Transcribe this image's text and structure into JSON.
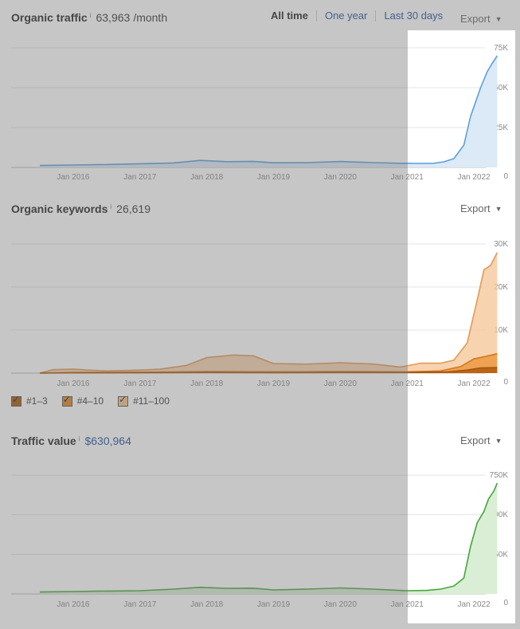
{
  "traffic": {
    "title": "Organic traffic",
    "info": "i",
    "value": "63,963",
    "unit": "/month",
    "range": [
      "All time",
      "One year",
      "Last 30 days"
    ],
    "export": "Export",
    "color": "#5aa0dc"
  },
  "keywords": {
    "title": "Organic keywords",
    "info": "i",
    "value": "26,619",
    "export": "Export",
    "legend": [
      {
        "label": "#1–3",
        "color": "#a95409"
      },
      {
        "label": "#4–10",
        "color": "#e0831c"
      },
      {
        "label": "#11–100",
        "color": "#f5c18b"
      }
    ]
  },
  "value": {
    "title": "Traffic value",
    "info": "i",
    "value": "$630,964",
    "export": "Export",
    "color": "#45a63a"
  },
  "arrow_icon": "caret-down-icon",
  "chart_data": [
    {
      "type": "area",
      "x_labels": [
        "Jan 2016",
        "Jan 2017",
        "Jan 2018",
        "Jan 2019",
        "Jan 2020",
        "Jan 2021",
        "Jan 2022"
      ],
      "y_ticks": [
        "0",
        "25K",
        "50K",
        "75K"
      ],
      "ylim": [
        0,
        75000
      ],
      "xlim": [
        2015.5,
        2022.5
      ],
      "series": [
        {
          "values": [
            [
              2015.5,
              1200
            ],
            [
              2016.0,
              1500
            ],
            [
              2016.5,
              1800
            ],
            [
              2017.0,
              2300
            ],
            [
              2017.5,
              2800
            ],
            [
              2017.9,
              4400
            ],
            [
              2018.3,
              3600
            ],
            [
              2018.7,
              3800
            ],
            [
              2019.0,
              2900
            ],
            [
              2019.5,
              3000
            ],
            [
              2020.0,
              3700
            ],
            [
              2020.5,
              3000
            ],
            [
              2020.9,
              2600
            ],
            [
              2021.2,
              2500
            ],
            [
              2021.4,
              2600
            ],
            [
              2021.55,
              3500
            ],
            [
              2021.7,
              5500
            ],
            [
              2021.85,
              14000
            ],
            [
              2021.95,
              32000
            ],
            [
              2022.1,
              50000
            ],
            [
              2022.2,
              60000
            ],
            [
              2022.27,
              65000
            ],
            [
              2022.35,
              70000
            ]
          ]
        }
      ]
    },
    {
      "type": "area",
      "x_labels": [
        "Jan 2016",
        "Jan 2017",
        "Jan 2018",
        "Jan 2019",
        "Jan 2020",
        "Jan 2021",
        "Jan 2022"
      ],
      "y_ticks": [
        "0",
        "10K",
        "20K",
        "30K"
      ],
      "ylim": [
        0,
        30000
      ],
      "xlim": [
        2015.5,
        2022.5
      ],
      "series": [
        {
          "values": [
            [
              2015.5,
              0
            ],
            [
              2015.7,
              800
            ],
            [
              2016.0,
              900
            ],
            [
              2016.5,
              500
            ],
            [
              2017.0,
              700
            ],
            [
              2017.3,
              900
            ],
            [
              2017.7,
              1800
            ],
            [
              2018.0,
              3600
            ],
            [
              2018.4,
              4200
            ],
            [
              2018.7,
              4000
            ],
            [
              2019.0,
              2200
            ],
            [
              2019.5,
              2100
            ],
            [
              2020.0,
              2400
            ],
            [
              2020.5,
              2100
            ],
            [
              2020.9,
              1400
            ],
            [
              2021.2,
              2300
            ],
            [
              2021.5,
              2300
            ],
            [
              2021.7,
              3000
            ],
            [
              2021.9,
              7000
            ],
            [
              2022.05,
              17000
            ],
            [
              2022.15,
              24000
            ],
            [
              2022.25,
              25000
            ],
            [
              2022.35,
              28000
            ]
          ]
        },
        {
          "values": [
            [
              2015.5,
              0
            ],
            [
              2016.0,
              150
            ],
            [
              2017.0,
              200
            ],
            [
              2018.0,
              350
            ],
            [
              2019.0,
              300
            ],
            [
              2020.0,
              350
            ],
            [
              2021.0,
              300
            ],
            [
              2021.5,
              500
            ],
            [
              2021.8,
              1500
            ],
            [
              2022.0,
              3300
            ],
            [
              2022.15,
              3800
            ],
            [
              2022.35,
              4500
            ]
          ]
        },
        {
          "values": [
            [
              2015.5,
              0
            ],
            [
              2016.0,
              50
            ],
            [
              2017.0,
              80
            ],
            [
              2018.0,
              150
            ],
            [
              2019.0,
              120
            ],
            [
              2020.0,
              150
            ],
            [
              2021.0,
              150
            ],
            [
              2021.6,
              250
            ],
            [
              2021.9,
              700
            ],
            [
              2022.1,
              1200
            ],
            [
              2022.35,
              1300
            ]
          ]
        }
      ]
    },
    {
      "type": "area",
      "x_labels": [
        "Jan 2016",
        "Jan 2017",
        "Jan 2018",
        "Jan 2019",
        "Jan 2020",
        "Jan 2021",
        "Jan 2022"
      ],
      "y_ticks": [
        "0",
        "250K",
        "500K",
        "750K"
      ],
      "ylim": [
        0,
        750000
      ],
      "xlim": [
        2015.5,
        2022.5
      ],
      "series": [
        {
          "values": [
            [
              2015.5,
              12000
            ],
            [
              2016.0,
              15000
            ],
            [
              2016.5,
              18000
            ],
            [
              2017.0,
              20000
            ],
            [
              2017.5,
              30000
            ],
            [
              2017.9,
              42000
            ],
            [
              2018.3,
              35000
            ],
            [
              2018.7,
              36000
            ],
            [
              2019.0,
              25000
            ],
            [
              2019.5,
              30000
            ],
            [
              2020.0,
              38000
            ],
            [
              2020.5,
              30000
            ],
            [
              2021.0,
              20000
            ],
            [
              2021.3,
              22000
            ],
            [
              2021.5,
              30000
            ],
            [
              2021.7,
              50000
            ],
            [
              2021.85,
              100000
            ],
            [
              2021.95,
              300000
            ],
            [
              2022.05,
              450000
            ],
            [
              2022.15,
              520000
            ],
            [
              2022.22,
              600000
            ],
            [
              2022.3,
              650000
            ],
            [
              2022.35,
              700000
            ]
          ]
        }
      ]
    }
  ]
}
